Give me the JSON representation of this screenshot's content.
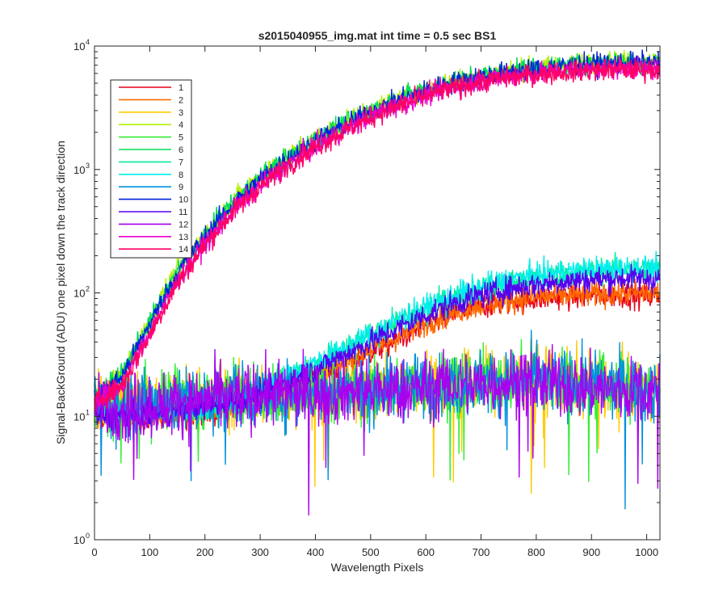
{
  "chart_data": {
    "type": "line",
    "title": "s2015040955_img.mat int time = 0.5 sec   BS1",
    "xlabel": "Wavelength Pixels",
    "ylabel": "Signal-BackGround (ADU) one pixel down the track direction",
    "xlim": [
      0,
      1024
    ],
    "ylim": [
      1,
      10000
    ],
    "yscale": "log",
    "grid": false,
    "legend_location": "top-left",
    "x_ticks": [
      0,
      100,
      200,
      300,
      400,
      500,
      600,
      700,
      800,
      900,
      1000
    ],
    "y_ticks": [
      1,
      10,
      100,
      1000,
      10000
    ],
    "y_tick_labels": [
      {
        "base": "10",
        "exp": "0"
      },
      {
        "base": "10",
        "exp": "1"
      },
      {
        "base": "10",
        "exp": "2"
      },
      {
        "base": "10",
        "exp": "3"
      },
      {
        "base": "10",
        "exp": "4"
      }
    ],
    "x_samples": [
      0,
      50,
      100,
      150,
      200,
      250,
      300,
      350,
      400,
      450,
      500,
      550,
      600,
      650,
      700,
      750,
      800,
      850,
      900,
      950,
      1024
    ],
    "series": [
      {
        "name": "1",
        "color": "#e6001a",
        "noise": 0.12,
        "values": [
          10,
          10,
          10,
          10,
          11,
          12,
          14,
          17,
          20,
          26,
          33,
          42,
          55,
          68,
          78,
          85,
          90,
          93,
          95,
          96,
          95
        ]
      },
      {
        "name": "2",
        "color": "#ff6a00",
        "noise": 0.12,
        "values": [
          10,
          10,
          10,
          10,
          11,
          12,
          14,
          17,
          21,
          27,
          35,
          44,
          57,
          70,
          80,
          87,
          92,
          95,
          97,
          99,
          100
        ]
      },
      {
        "name": "3",
        "color": "#ffcc00",
        "noise": 0.3,
        "values": [
          12,
          13,
          13,
          14,
          14,
          15,
          15,
          15,
          16,
          16,
          16,
          17,
          18,
          18,
          19,
          20,
          20,
          19,
          18,
          17,
          17
        ]
      },
      {
        "name": "4",
        "color": "#b0f000",
        "noise": 0.1,
        "values": [
          14,
          22,
          60,
          155,
          300,
          550,
          880,
          1280,
          1780,
          2350,
          3050,
          3750,
          4500,
          5200,
          5800,
          6300,
          6700,
          7000,
          7300,
          7500,
          7500
        ]
      },
      {
        "name": "5",
        "color": "#33ee33",
        "noise": 0.3,
        "values": [
          12,
          12,
          13,
          14,
          14,
          15,
          15,
          15,
          16,
          16,
          16,
          17,
          18,
          18,
          19,
          20,
          20,
          19,
          18,
          17,
          17
        ]
      },
      {
        "name": "6",
        "color": "#00dd55",
        "noise": 0.1,
        "values": [
          14,
          22,
          58,
          150,
          295,
          540,
          860,
          1260,
          1750,
          2300,
          3000,
          3700,
          4450,
          5150,
          5750,
          6250,
          6650,
          6950,
          7250,
          7400,
          7400
        ]
      },
      {
        "name": "7",
        "color": "#00ee99",
        "noise": 0.12,
        "values": [
          11,
          11,
          11,
          11,
          12,
          13,
          16,
          21,
          26,
          34,
          45,
          58,
          74,
          92,
          108,
          122,
          133,
          142,
          150,
          155,
          156
        ]
      },
      {
        "name": "8",
        "color": "#00eeee",
        "noise": 0.12,
        "values": [
          11,
          11,
          11,
          11,
          12,
          13,
          16,
          21,
          27,
          35,
          46,
          60,
          76,
          95,
          112,
          127,
          138,
          147,
          154,
          158,
          158
        ]
      },
      {
        "name": "9",
        "color": "#0090dd",
        "noise": 0.3,
        "values": [
          12,
          12,
          13,
          13,
          14,
          15,
          15,
          15,
          16,
          16,
          16,
          17,
          18,
          18,
          19,
          20,
          20,
          19,
          18,
          17,
          16
        ]
      },
      {
        "name": "10",
        "color": "#0022dd",
        "noise": 0.1,
        "values": [
          14,
          21,
          56,
          145,
          285,
          520,
          830,
          1220,
          1700,
          2250,
          2930,
          3620,
          4350,
          5050,
          5650,
          6150,
          6550,
          6850,
          7150,
          7300,
          7300
        ]
      },
      {
        "name": "11",
        "color": "#5500ee",
        "noise": 0.12,
        "values": [
          10,
          10,
          10,
          11,
          12,
          13,
          15,
          19,
          24,
          31,
          40,
          52,
          66,
          82,
          96,
          108,
          117,
          124,
          129,
          131,
          130
        ]
      },
      {
        "name": "12",
        "color": "#aa00ee",
        "noise": 0.3,
        "values": [
          12,
          12,
          12,
          13,
          14,
          14,
          15,
          15,
          15,
          16,
          16,
          16,
          17,
          18,
          18,
          19,
          19,
          18,
          17,
          16,
          16
        ]
      },
      {
        "name": "13",
        "color": "#ee00cc",
        "noise": 0.1,
        "values": [
          13,
          18,
          48,
          125,
          250,
          460,
          740,
          1100,
          1540,
          2050,
          2680,
          3320,
          4000,
          4650,
          5200,
          5650,
          6000,
          6250,
          6450,
          6550,
          6500
        ]
      },
      {
        "name": "14",
        "color": "#ff0066",
        "noise": 0.1,
        "values": [
          13,
          18,
          46,
          120,
          245,
          450,
          725,
          1080,
          1510,
          2010,
          2630,
          3260,
          3930,
          4570,
          5120,
          5560,
          5900,
          6150,
          6350,
          6450,
          6400
        ]
      }
    ]
  }
}
